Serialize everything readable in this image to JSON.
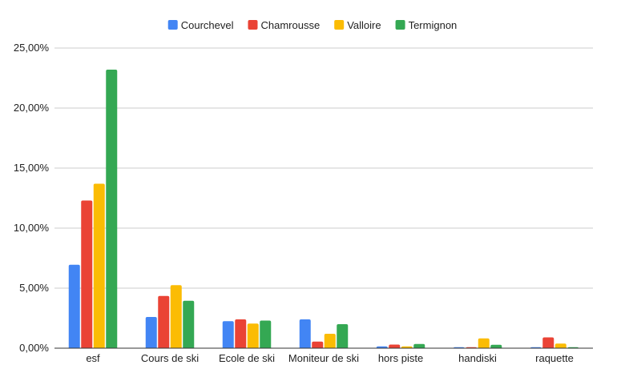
{
  "chart_data": {
    "type": "bar",
    "title": "",
    "xlabel": "",
    "ylabel": "",
    "legend_position": "top-center",
    "grid": true,
    "ylim": [
      0,
      25
    ],
    "y_ticks": [
      "0,00%",
      "5,00%",
      "10,00%",
      "15,00%",
      "20,00%",
      "25,00%"
    ],
    "y_tick_values": [
      0,
      5,
      10,
      15,
      20,
      25
    ],
    "categories": [
      "esf",
      "Cours de ski",
      "Ecole de ski",
      "Moniteur de ski",
      "hors piste",
      "handiski",
      "raquette"
    ],
    "series": [
      {
        "name": "Courchevel",
        "color": "#4285f4",
        "values": [
          6.95,
          2.6,
          2.25,
          2.4,
          0.15,
          0.08,
          0.08
        ]
      },
      {
        "name": "Chamrousse",
        "color": "#ea4335",
        "values": [
          12.3,
          4.35,
          2.4,
          0.55,
          0.3,
          0.08,
          0.9
        ]
      },
      {
        "name": "Valloire",
        "color": "#fbbc04",
        "values": [
          13.7,
          5.25,
          2.05,
          1.2,
          0.15,
          0.82,
          0.38
        ]
      },
      {
        "name": "Termignon",
        "color": "#34a853",
        "values": [
          23.2,
          3.95,
          2.3,
          2.0,
          0.35,
          0.28,
          0.08
        ]
      }
    ]
  }
}
